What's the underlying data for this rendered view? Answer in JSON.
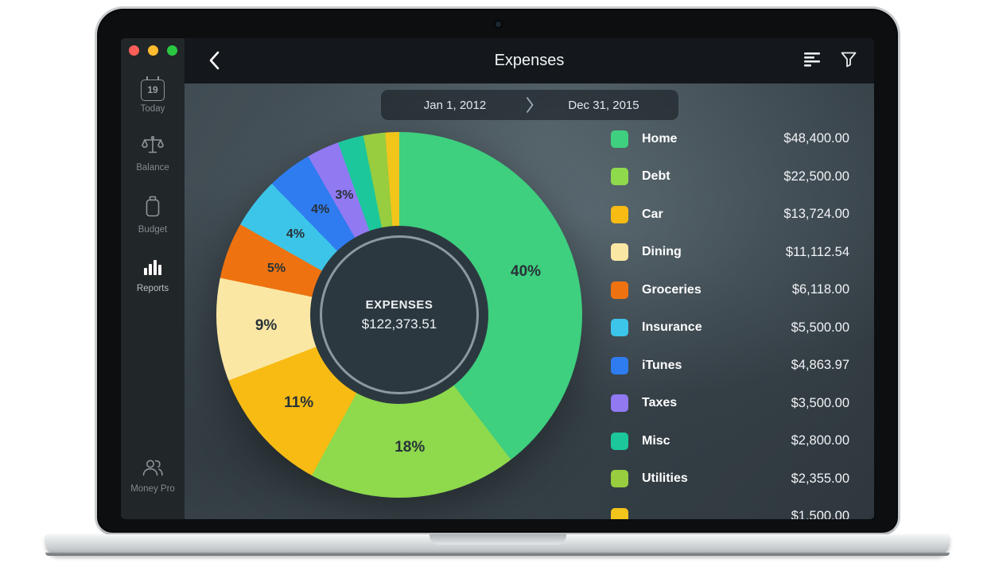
{
  "window": {
    "title": "Expenses"
  },
  "sidebar": {
    "items": [
      {
        "label": "Today",
        "icon": "calendar-icon",
        "badge": "19"
      },
      {
        "label": "Balance",
        "icon": "balance-scale-icon"
      },
      {
        "label": "Budget",
        "icon": "budget-icon"
      },
      {
        "label": "Reports",
        "icon": "bar-chart-icon",
        "active": true
      }
    ],
    "footer": {
      "label": "Money Pro",
      "icon": "users-icon"
    }
  },
  "date_range": {
    "start": "Jan 1, 2012",
    "end": "Dec 31, 2015"
  },
  "chart_data": {
    "type": "pie",
    "style": "donut",
    "center_label": "EXPENSES",
    "center_value": "$122,373.51",
    "total": 122373.51,
    "legend_position": "right",
    "start_angle_deg": 0,
    "direction": "clockwise",
    "series": [
      {
        "name": "Home",
        "value": 48400.0,
        "amount": "$48,400.00",
        "percent_label": "40%",
        "color": "#3ecf7f"
      },
      {
        "name": "Debt",
        "value": 22500.0,
        "amount": "$22,500.00",
        "percent_label": "18%",
        "color": "#8ed94c"
      },
      {
        "name": "Car",
        "value": 13724.0,
        "amount": "$13,724.00",
        "percent_label": "11%",
        "color": "#f7bb13"
      },
      {
        "name": "Dining",
        "value": 11112.54,
        "amount": "$11,112.54",
        "percent_label": "9%",
        "color": "#fbe7a4"
      },
      {
        "name": "Groceries",
        "value": 6118.0,
        "amount": "$6,118.00",
        "percent_label": "5%",
        "color": "#ee7310"
      },
      {
        "name": "Insurance",
        "value": 5500.0,
        "amount": "$5,500.00",
        "percent_label": "4%",
        "color": "#3cc5e8"
      },
      {
        "name": "iTunes",
        "value": 4863.97,
        "amount": "$4,863.97",
        "percent_label": "4%",
        "color": "#2f7cf0"
      },
      {
        "name": "Taxes",
        "value": 3500.0,
        "amount": "$3,500.00",
        "percent_label": "3%",
        "color": "#9179f2"
      },
      {
        "name": "Misc",
        "value": 2800.0,
        "amount": "$2,800.00",
        "percent_label": "",
        "color": "#1cc79b"
      },
      {
        "name": "Utilities",
        "value": 2355.0,
        "amount": "$2,355.00",
        "percent_label": "",
        "color": "#97cd3f"
      },
      {
        "name": "",
        "value": 1500.0,
        "amount": "$1,500.00",
        "percent_label": "",
        "color": "#f2c51b",
        "clipped": true
      }
    ]
  }
}
